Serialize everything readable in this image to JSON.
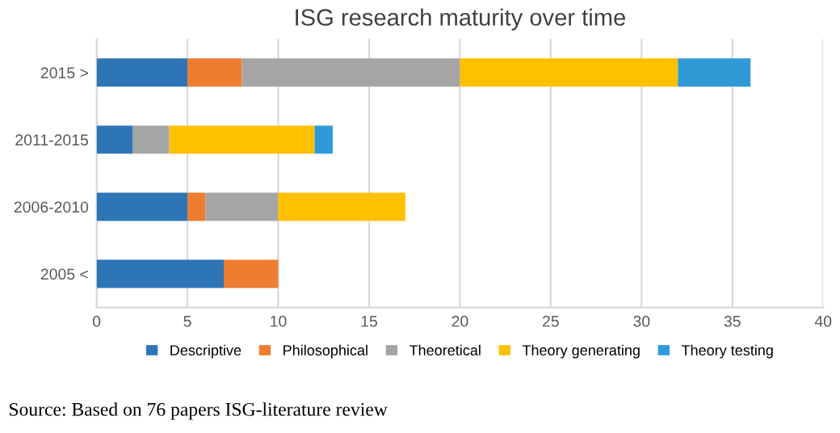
{
  "chart_data": {
    "type": "bar",
    "orientation": "horizontal",
    "stacked": true,
    "title": "ISG research maturity over time",
    "categories": [
      "2015 >",
      "2011-2015",
      "2006-2010",
      "2005 <"
    ],
    "series": [
      {
        "name": "Descriptive",
        "color": "#2e75b6",
        "values": [
          5,
          2,
          5,
          7
        ]
      },
      {
        "name": "Philosophical",
        "color": "#ed7d31",
        "values": [
          3,
          0,
          1,
          3
        ]
      },
      {
        "name": "Theoretical",
        "color": "#a5a5a5",
        "values": [
          12,
          2,
          4,
          0
        ]
      },
      {
        "name": "Theory generating",
        "color": "#ffc000",
        "values": [
          12,
          8,
          7,
          0
        ]
      },
      {
        "name": "Theory testing",
        "color": "#2f9ad6",
        "values": [
          4,
          1,
          0,
          0
        ]
      }
    ],
    "xlim": [
      0,
      40
    ],
    "xticks": [
      0,
      5,
      10,
      15,
      20,
      25,
      30,
      35,
      40
    ],
    "grid": "x",
    "legend": "bottom",
    "annotations": [
      "Source: Based on 76 papers ISG-literature review"
    ]
  }
}
